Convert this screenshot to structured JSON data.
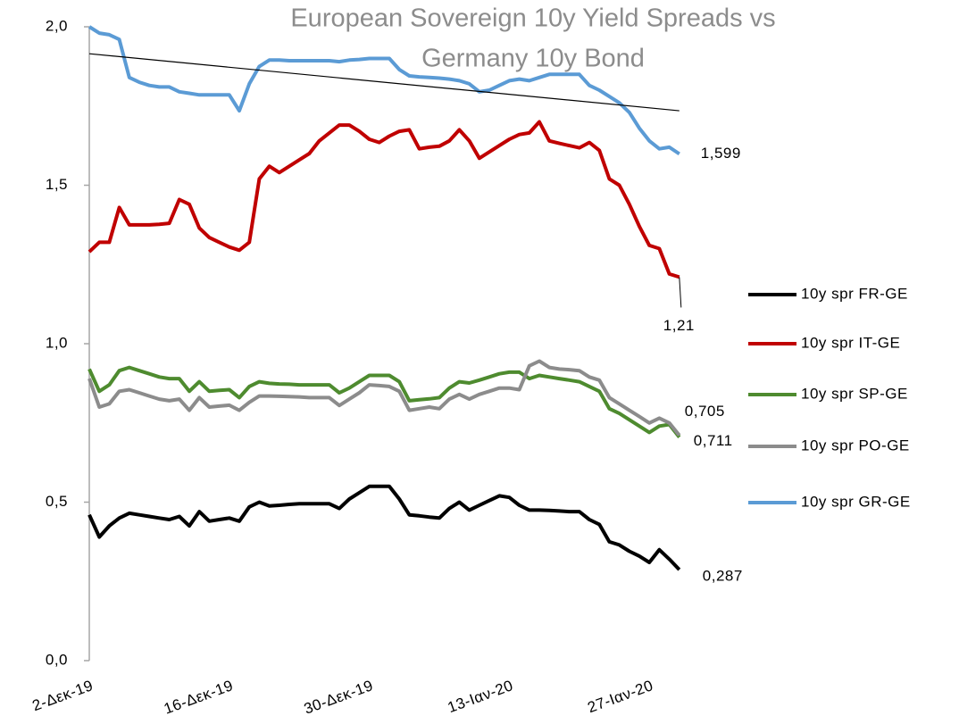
{
  "chart_data": {
    "type": "line",
    "title": [
      "European Sovereign 10y Yield Spreads vs",
      "Germany 10y Bond"
    ],
    "categories": [
      "2-Δεκ-19",
      null,
      null,
      null,
      null,
      null,
      null,
      null,
      null,
      null,
      null,
      null,
      null,
      null,
      "16-Δεκ-19",
      null,
      null,
      null,
      null,
      null,
      null,
      null,
      null,
      null,
      null,
      null,
      null,
      null,
      "30-Δεκ-19",
      null,
      null,
      null,
      null,
      null,
      null,
      null,
      null,
      null,
      null,
      null,
      null,
      null,
      "13-Ιαν-20",
      null,
      null,
      null,
      null,
      null,
      null,
      null,
      null,
      null,
      null,
      null,
      null,
      null,
      "27-Ιαν-20",
      null,
      null,
      null
    ],
    "ylim": [
      0,
      2
    ],
    "yticks": [
      {
        "value": 0,
        "label": "0,0"
      },
      {
        "value": 0.5,
        "label": "0,5"
      },
      {
        "value": 1,
        "label": "1,0"
      },
      {
        "value": 1.5,
        "label": "1,5"
      },
      {
        "value": 2,
        "label": "2,0"
      }
    ],
    "grid": false,
    "legend": "right",
    "trendline": {
      "series": 4,
      "color": "#000000",
      "values": [
        1.915,
        1.735
      ]
    },
    "series": [
      {
        "name": "10y spr FR-GE",
        "color": "#000000",
        "end_label": "0,287",
        "values": [
          0.46,
          0.39,
          0.425,
          0.45,
          0.465,
          0.46,
          0.455,
          0.45,
          0.445,
          0.455,
          0.425,
          0.47,
          0.44,
          0.445,
          0.45,
          0.44,
          0.485,
          0.5,
          0.488,
          0.49,
          0.493,
          0.495,
          0.495,
          0.495,
          0.495,
          0.48,
          0.51,
          0.53,
          0.55,
          0.55,
          0.55,
          0.51,
          0.46,
          0.457,
          0.453,
          0.45,
          0.48,
          0.5,
          0.475,
          0.49,
          0.505,
          0.52,
          0.515,
          0.49,
          0.475,
          0.475,
          0.474,
          0.472,
          0.47,
          0.47,
          0.445,
          0.43,
          0.375,
          0.365,
          0.345,
          0.33,
          0.31,
          0.35,
          0.32,
          0.287
        ]
      },
      {
        "name": "10y spr IT-GE",
        "color": "#c00000",
        "end_label": "1,21",
        "values": [
          1.29,
          1.32,
          1.32,
          1.43,
          1.375,
          1.375,
          1.375,
          1.377,
          1.38,
          1.455,
          1.44,
          1.365,
          1.335,
          1.32,
          1.305,
          1.295,
          1.32,
          1.52,
          1.56,
          1.54,
          1.56,
          1.58,
          1.6,
          1.64,
          1.665,
          1.69,
          1.69,
          1.67,
          1.645,
          1.635,
          1.655,
          1.67,
          1.675,
          1.615,
          1.62,
          1.623,
          1.64,
          1.675,
          1.64,
          1.585,
          1.605,
          1.625,
          1.645,
          1.66,
          1.665,
          1.7,
          1.64,
          1.632,
          1.625,
          1.618,
          1.635,
          1.61,
          1.52,
          1.5,
          1.44,
          1.37,
          1.31,
          1.3,
          1.22,
          1.21
        ]
      },
      {
        "name": "10y spr SP-GE",
        "color": "#4e8b2f",
        "end_label": "0,705",
        "values": [
          0.92,
          0.85,
          0.87,
          0.915,
          0.925,
          0.915,
          0.905,
          0.895,
          0.89,
          0.89,
          0.85,
          0.88,
          0.85,
          0.853,
          0.855,
          0.83,
          0.865,
          0.88,
          0.875,
          0.873,
          0.872,
          0.87,
          0.87,
          0.87,
          0.87,
          0.845,
          0.86,
          0.88,
          0.9,
          0.9,
          0.9,
          0.88,
          0.82,
          0.823,
          0.826,
          0.83,
          0.86,
          0.88,
          0.876,
          0.885,
          0.895,
          0.905,
          0.91,
          0.91,
          0.89,
          0.9,
          0.895,
          0.89,
          0.885,
          0.88,
          0.865,
          0.85,
          0.795,
          0.78,
          0.76,
          0.74,
          0.72,
          0.74,
          0.745,
          0.705
        ]
      },
      {
        "name": "10y spr PO-GE",
        "color": "#8c8c8c",
        "end_label": "0,711",
        "values": [
          0.89,
          0.8,
          0.81,
          0.85,
          0.855,
          0.845,
          0.835,
          0.825,
          0.82,
          0.825,
          0.79,
          0.83,
          0.8,
          0.803,
          0.806,
          0.79,
          0.815,
          0.835,
          0.835,
          0.834,
          0.833,
          0.832,
          0.83,
          0.83,
          0.83,
          0.805,
          0.825,
          0.845,
          0.87,
          0.868,
          0.865,
          0.85,
          0.79,
          0.795,
          0.8,
          0.795,
          0.825,
          0.84,
          0.825,
          0.84,
          0.85,
          0.86,
          0.86,
          0.855,
          0.93,
          0.945,
          0.925,
          0.92,
          0.918,
          0.915,
          0.895,
          0.885,
          0.83,
          0.81,
          0.79,
          0.77,
          0.75,
          0.765,
          0.75,
          0.711
        ]
      },
      {
        "name": "10y spr GR-GE",
        "color": "#5b9bd5",
        "end_label": "1,599",
        "values": [
          2.0,
          1.98,
          1.975,
          1.96,
          1.84,
          1.825,
          1.815,
          1.81,
          1.81,
          1.795,
          1.79,
          1.785,
          1.785,
          1.785,
          1.785,
          1.735,
          1.82,
          1.875,
          1.895,
          1.895,
          1.893,
          1.893,
          1.893,
          1.893,
          1.893,
          1.89,
          1.895,
          1.897,
          1.9,
          1.9,
          1.9,
          1.865,
          1.845,
          1.842,
          1.84,
          1.838,
          1.835,
          1.83,
          1.82,
          1.795,
          1.8,
          1.815,
          1.83,
          1.835,
          1.83,
          1.84,
          1.85,
          1.85,
          1.85,
          1.85,
          1.815,
          1.8,
          1.78,
          1.76,
          1.73,
          1.68,
          1.64,
          1.615,
          1.62,
          1.599
        ]
      }
    ]
  }
}
